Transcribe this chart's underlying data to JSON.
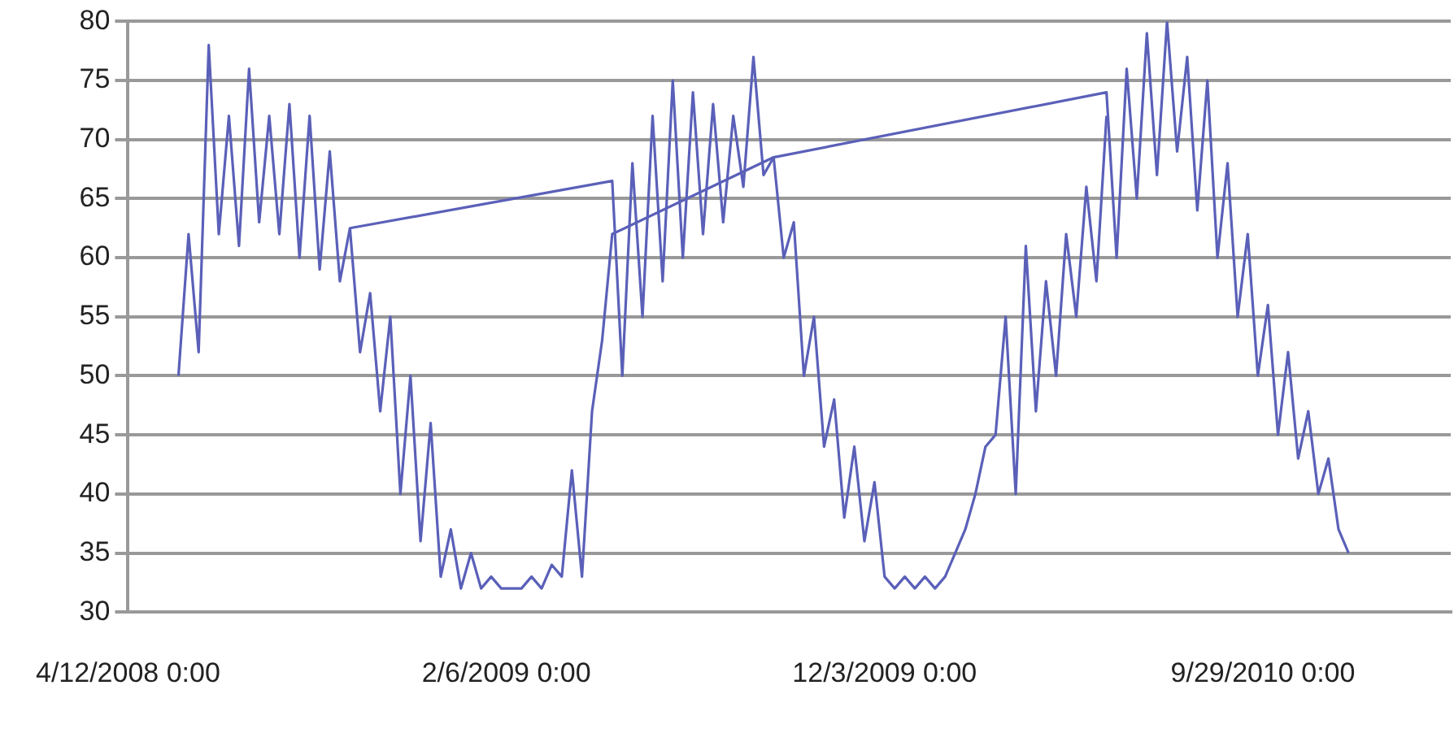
{
  "chart_data": {
    "type": "line",
    "xlim": [
      "2008-04-12",
      "2011-02-25"
    ],
    "xticks": [
      {
        "value": "2008-04-12",
        "label": "4/12/2008 0:00"
      },
      {
        "value": "2009-02-06",
        "label": "2/6/2009 0:00"
      },
      {
        "value": "2009-12-03",
        "label": "12/3/2009 0:00"
      },
      {
        "value": "2010-09-29",
        "label": "9/29/2010 0:00"
      }
    ],
    "ylim": [
      30,
      80
    ],
    "yticks": [
      30,
      35,
      40,
      45,
      50,
      55,
      60,
      65,
      70,
      75,
      80
    ],
    "grid": "y",
    "marker": "none",
    "line_style": "solid",
    "legend": false,
    "series": [
      {
        "color": "#5a60b8",
        "x": [
          "2008-05-22",
          "2008-05-30",
          "2008-06-07",
          "2008-06-15",
          "2008-06-23",
          "2008-07-01",
          "2008-07-09",
          "2008-07-17",
          "2008-07-25",
          "2008-08-02",
          "2008-08-10",
          "2008-08-18",
          "2008-08-26",
          "2008-09-03",
          "2008-09-11",
          "2008-09-19",
          "2008-09-27",
          "2008-10-05",
          "2009-05-01",
          "2009-05-09",
          "2009-05-17",
          "2009-05-25",
          "2009-06-02",
          "2009-06-10",
          "2009-06-18",
          "2009-06-26",
          "2009-07-04",
          "2009-07-12",
          "2009-07-20",
          "2009-07-28",
          "2009-08-05",
          "2009-08-13",
          "2009-08-21",
          "2009-08-29",
          "2009-09-06",
          "2010-05-28",
          "2010-06-05",
          "2010-06-13",
          "2010-06-21",
          "2010-06-29",
          "2010-07-07",
          "2010-07-15",
          "2010-07-23",
          "2010-07-31",
          "2010-08-08",
          "2010-08-16",
          "2010-08-24",
          "2010-09-01",
          "2010-09-09",
          "2010-09-17",
          "2010-09-25",
          "2010-10-03",
          "2010-10-11",
          "2010-10-19",
          "2010-10-27",
          "2010-11-04",
          "2010-11-12",
          "2010-11-20",
          "2010-11-28",
          "2010-12-06"
        ],
        "values": [
          50,
          62,
          52,
          78,
          62,
          72,
          61,
          76,
          63,
          72,
          62,
          73,
          60,
          72,
          59,
          69,
          58,
          62.5,
          66.5,
          50,
          68,
          55,
          72,
          58,
          75,
          60,
          74,
          62,
          73,
          63,
          72,
          66,
          77,
          67,
          68.5,
          74,
          60,
          76,
          65,
          79,
          67,
          80,
          69,
          77,
          64,
          75,
          60,
          68,
          55,
          62,
          50,
          56,
          45,
          52,
          43,
          47,
          40,
          43,
          37,
          35
        ]
      },
      {
        "color": "#5a60b8",
        "x": [
          "2008-10-05",
          "2008-10-13",
          "2008-10-21",
          "2008-10-29",
          "2008-11-06",
          "2008-11-14",
          "2008-11-22",
          "2008-11-30",
          "2008-12-08",
          "2008-12-16",
          "2008-12-24",
          "2009-01-01",
          "2009-01-09",
          "2009-01-17",
          "2009-01-25",
          "2009-02-02",
          "2009-02-10",
          "2009-02-18",
          "2009-02-26",
          "2009-03-06",
          "2009-03-14",
          "2009-03-22",
          "2009-03-30",
          "2009-04-07",
          "2009-04-15",
          "2009-04-23",
          "2009-05-01",
          "2009-09-06",
          "2009-09-14",
          "2009-09-22",
          "2009-09-30",
          "2009-10-08",
          "2009-10-16",
          "2009-10-24",
          "2009-11-01",
          "2009-11-09",
          "2009-11-17",
          "2009-11-25",
          "2009-12-03",
          "2009-12-11",
          "2009-12-19",
          "2009-12-27",
          "2010-01-04",
          "2010-01-12",
          "2010-01-20",
          "2010-01-28",
          "2010-02-05",
          "2010-02-13",
          "2010-02-21",
          "2010-03-01",
          "2010-03-09",
          "2010-03-17",
          "2010-03-25",
          "2010-04-02",
          "2010-04-10",
          "2010-04-18",
          "2010-04-26",
          "2010-05-04",
          "2010-05-12",
          "2010-05-20",
          "2010-05-28"
        ],
        "values": [
          62.5,
          52,
          57,
          47,
          55,
          40,
          50,
          36,
          46,
          33,
          37,
          32,
          35,
          32,
          33,
          32,
          32,
          32,
          33,
          32,
          34,
          33,
          42,
          33,
          47,
          53,
          62,
          68.5,
          60,
          63,
          50,
          55,
          44,
          48,
          38,
          44,
          36,
          41,
          33,
          32,
          33,
          32,
          33,
          32,
          33,
          35,
          37,
          40,
          44,
          45,
          55,
          40,
          61,
          47,
          58,
          50,
          62,
          55,
          66,
          58,
          72
        ]
      }
    ]
  }
}
